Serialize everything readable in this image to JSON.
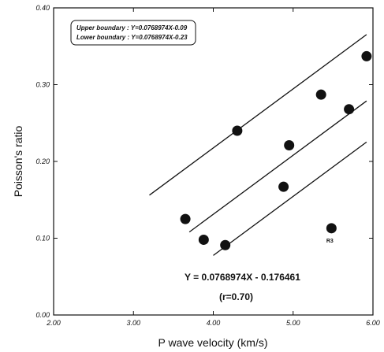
{
  "chart_data": {
    "type": "scatter",
    "title": "",
    "xlabel": "P wave velocity  (km/s)",
    "ylabel": "Poisson's ratio",
    "xlim": [
      2.0,
      6.0
    ],
    "ylim": [
      0.0,
      0.4
    ],
    "xticks": [
      2.0,
      3.0,
      4.0,
      5.0,
      6.0
    ],
    "xtick_labels": [
      "2.00",
      "3.00",
      "4.00",
      "5.00",
      "6.00"
    ],
    "yticks": [
      0.0,
      0.1,
      0.2,
      0.3,
      0.4
    ],
    "ytick_labels": [
      "0.00",
      "0.10",
      "0.20",
      "0.30",
      "0.40"
    ],
    "grid": false,
    "legend_position": "top-left",
    "points": [
      {
        "x": 3.65,
        "y": 0.125
      },
      {
        "x": 3.88,
        "y": 0.098
      },
      {
        "x": 4.15,
        "y": 0.091
      },
      {
        "x": 4.3,
        "y": 0.24
      },
      {
        "x": 4.88,
        "y": 0.167
      },
      {
        "x": 4.95,
        "y": 0.221
      },
      {
        "x": 5.35,
        "y": 0.287
      },
      {
        "x": 5.48,
        "y": 0.113,
        "label": "R3"
      },
      {
        "x": 5.7,
        "y": 0.268
      },
      {
        "x": 5.92,
        "y": 0.337
      }
    ],
    "lines": [
      {
        "name": "upper",
        "slope": 0.0768974,
        "intercept": -0.09,
        "x_range": [
          3.2,
          5.92
        ]
      },
      {
        "name": "regression",
        "slope": 0.0768974,
        "intercept": -0.176461,
        "x_range": [
          3.7,
          5.92
        ]
      },
      {
        "name": "lower",
        "slope": 0.0768974,
        "intercept": -0.23,
        "x_range": [
          4.0,
          5.92
        ]
      }
    ],
    "legend": {
      "upper": "Upper boundary : Y=0.0768974X-0.09",
      "lower": "Lower boundary : Y=0.0768974X-0.23"
    },
    "equation": "Y = 0.0768974X - 0.176461",
    "r_value": "(r=0.70)"
  }
}
